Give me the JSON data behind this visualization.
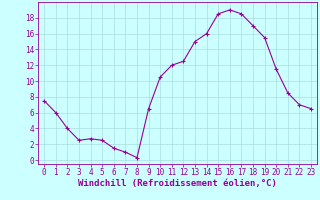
{
  "x": [
    0,
    1,
    2,
    3,
    4,
    5,
    6,
    7,
    8,
    9,
    10,
    11,
    12,
    13,
    14,
    15,
    16,
    17,
    18,
    19,
    20,
    21,
    22,
    23
  ],
  "y": [
    7.5,
    6.0,
    4.0,
    2.5,
    2.7,
    2.5,
    1.5,
    1.0,
    0.3,
    6.5,
    10.5,
    12.0,
    12.5,
    15.0,
    16.0,
    18.5,
    19.0,
    18.5,
    17.0,
    15.5,
    11.5,
    8.5,
    7.0,
    6.5
  ],
  "line_color": "#990099",
  "marker": "+",
  "markersize": 3,
  "linewidth": 0.8,
  "markeredgewidth": 0.8,
  "xlabel": "Windchill (Refroidissement éolien,°C)",
  "xlabel_color": "#990099",
  "xlabel_fontsize": 6.5,
  "bg_color": "#ccffff",
  "grid_color": "#aadddd",
  "ylim": [
    -0.5,
    20
  ],
  "xlim": [
    -0.5,
    23.5
  ],
  "yticks": [
    0,
    2,
    4,
    6,
    8,
    10,
    12,
    14,
    16,
    18
  ],
  "xticks": [
    0,
    1,
    2,
    3,
    4,
    5,
    6,
    7,
    8,
    9,
    10,
    11,
    12,
    13,
    14,
    15,
    16,
    17,
    18,
    19,
    20,
    21,
    22,
    23
  ],
  "tick_color": "#990099",
  "tick_fontsize": 5.5,
  "spine_color": "#990099",
  "fig_width": 3.2,
  "fig_height": 2.0,
  "dpi": 100
}
